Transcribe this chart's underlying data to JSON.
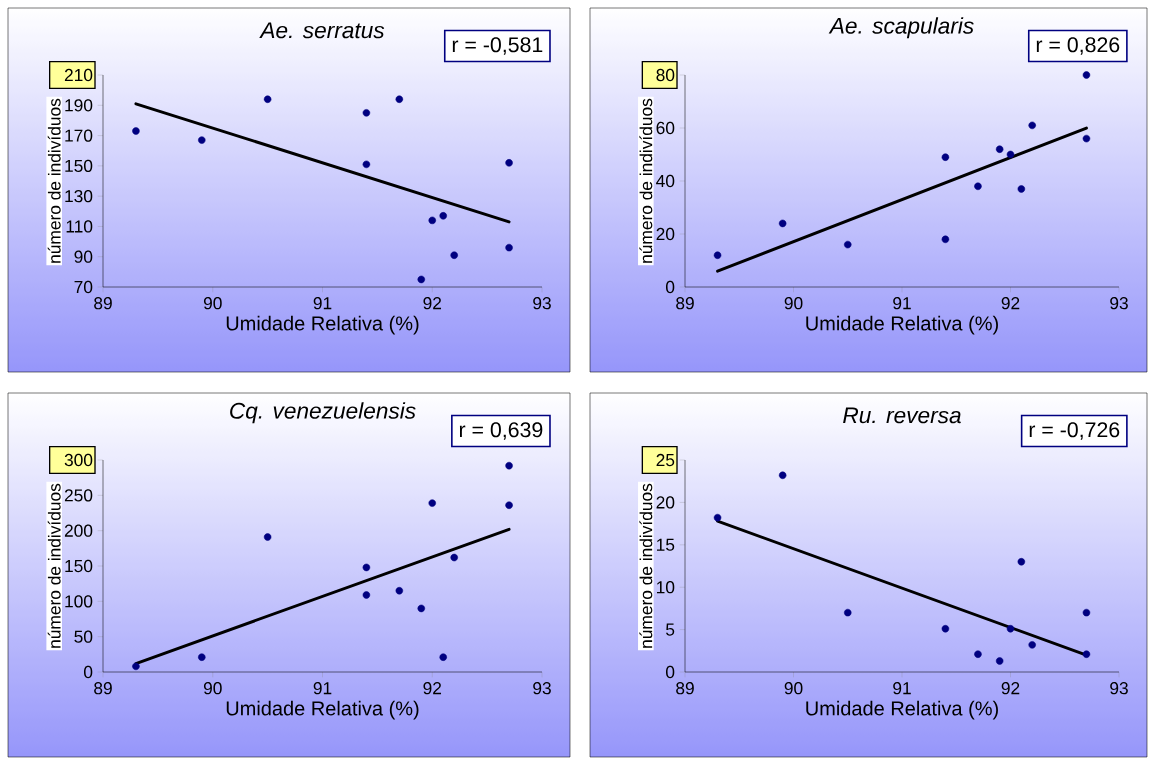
{
  "chart_data": [
    {
      "type": "scatter",
      "title": "*Ae. serratus*",
      "xlabel": "Umidade Relativa (%)",
      "ylabel": "número de indivíduos",
      "annotations": [
        "r = -0,581"
      ],
      "xlim": [
        89,
        93
      ],
      "xticks": [
        89,
        90,
        91,
        92,
        93
      ],
      "ylim": [
        70,
        210
      ],
      "yticks": [
        70,
        90,
        110,
        130,
        150,
        170,
        190,
        210
      ],
      "series": [
        {
          "marker": "circle",
          "color": "#000080",
          "x": [
            89.3,
            89.9,
            90.5,
            91.4,
            91.4,
            91.7,
            91.9,
            92.0,
            92.1,
            92.2,
            92.7,
            92.7
          ],
          "values": [
            173,
            167,
            194,
            185,
            151,
            194,
            75,
            114,
            117,
            91,
            152,
            96
          ]
        },
        {
          "type": "line",
          "marker": "none",
          "color": "#000000",
          "x": [
            89.3,
            92.7
          ],
          "values": [
            191,
            113
          ]
        }
      ]
    },
    {
      "type": "scatter",
      "title": "*Ae. scapularis*",
      "xlabel": "Umidade Relativa (%)",
      "ylabel": "número de indivíduos",
      "annotations": [
        "r = 0,826"
      ],
      "xlim": [
        89,
        93
      ],
      "xticks": [
        89,
        90,
        91,
        92,
        93
      ],
      "ylim": [
        0,
        80
      ],
      "yticks": [
        0,
        20,
        40,
        60,
        80
      ],
      "series": [
        {
          "marker": "circle",
          "color": "#000080",
          "x": [
            89.3,
            89.9,
            90.5,
            91.4,
            91.4,
            91.7,
            91.9,
            92.0,
            92.1,
            92.2,
            92.7,
            92.7
          ],
          "values": [
            12,
            24,
            16,
            49,
            18,
            38,
            52,
            50,
            37,
            61,
            80,
            56
          ]
        },
        {
          "type": "line",
          "marker": "none",
          "color": "#000000",
          "x": [
            89.3,
            92.7
          ],
          "values": [
            6,
            60
          ]
        }
      ]
    },
    {
      "type": "scatter",
      "title": "*Cq. venezuelensis*",
      "xlabel": "Umidade Relativa (%)",
      "ylabel": "número de indivíduos",
      "annotations": [
        "r = 0,639"
      ],
      "xlim": [
        89,
        93
      ],
      "xticks": [
        89,
        90,
        91,
        92,
        93
      ],
      "ylim": [
        0,
        300
      ],
      "yticks": [
        0,
        50,
        100,
        150,
        200,
        250,
        300
      ],
      "series": [
        {
          "marker": "circle",
          "color": "#000080",
          "x": [
            89.3,
            89.9,
            90.5,
            91.4,
            91.4,
            91.7,
            91.9,
            92.0,
            92.1,
            92.2,
            92.7,
            92.7
          ],
          "values": [
            8,
            21,
            191,
            148,
            109,
            115,
            90,
            239,
            21,
            162,
            292,
            236
          ]
        },
        {
          "type": "line",
          "marker": "none",
          "color": "#000000",
          "x": [
            89.3,
            92.7
          ],
          "values": [
            12,
            202
          ]
        }
      ]
    },
    {
      "type": "scatter",
      "title": "*Ru. reversa*",
      "xlabel": "Umidade Relativa (%)",
      "ylabel": "número de indivíduos",
      "annotations": [
        "r = -0,726"
      ],
      "xlim": [
        89,
        93
      ],
      "xticks": [
        89,
        90,
        91,
        92,
        93
      ],
      "ylim": [
        0,
        25
      ],
      "yticks": [
        0,
        5,
        10,
        15,
        20,
        25
      ],
      "series": [
        {
          "marker": "circle",
          "color": "#000080",
          "x": [
            89.3,
            89.9,
            90.5,
            91.4,
            91.7,
            91.9,
            92.0,
            92.1,
            92.2,
            92.7,
            92.7
          ],
          "values": [
            18.2,
            23.2,
            7,
            5.1,
            2.1,
            1.3,
            5.1,
            13,
            3.2,
            7,
            2.1
          ]
        },
        {
          "type": "line",
          "marker": "none",
          "color": "#000000",
          "x": [
            89.3,
            92.7
          ],
          "values": [
            17.8,
            2
          ]
        }
      ]
    }
  ]
}
